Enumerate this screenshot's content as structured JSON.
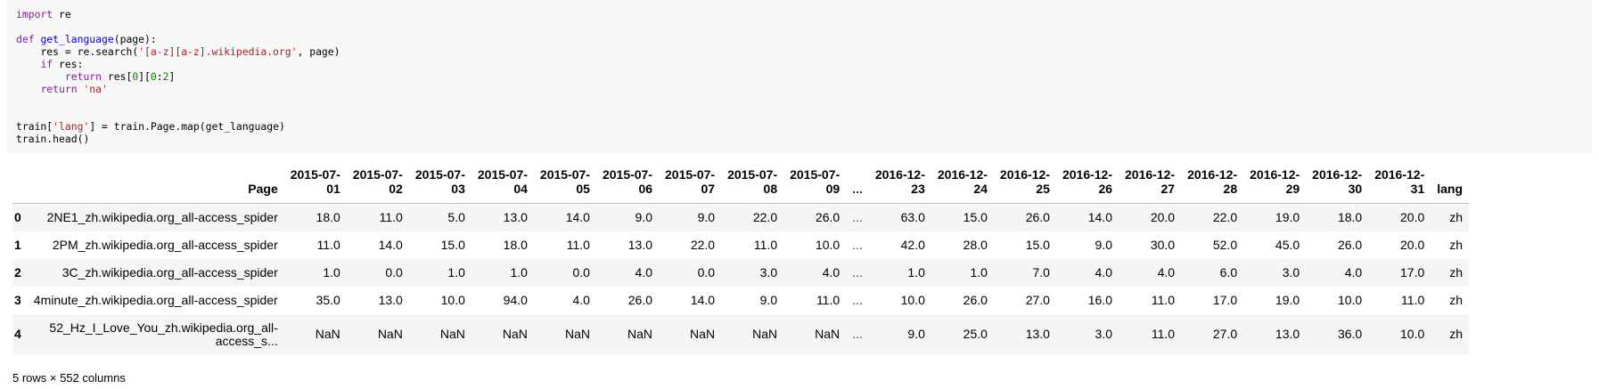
{
  "code_cell": {
    "lines": [
      "import re",
      "",
      "def get_language(page):",
      "    res = re.search('[a-z][a-z].wikipedia.org', page)",
      "    if res:",
      "        return res[0][0:2]",
      "    return 'na'",
      "",
      "",
      "train['lang'] = train.Page.map(get_language)",
      "train.head()"
    ]
  },
  "table": {
    "index_header": "",
    "page_header": "Page",
    "date_headers_left": [
      [
        "2015-07-",
        "01"
      ],
      [
        "2015-07-",
        "02"
      ],
      [
        "2015-07-",
        "03"
      ],
      [
        "2015-07-",
        "04"
      ],
      [
        "2015-07-",
        "05"
      ],
      [
        "2015-07-",
        "06"
      ],
      [
        "2015-07-",
        "07"
      ],
      [
        "2015-07-",
        "08"
      ],
      [
        "2015-07-",
        "09"
      ]
    ],
    "ellipsis": "...",
    "date_headers_right": [
      [
        "2016-12-",
        "23"
      ],
      [
        "2016-12-",
        "24"
      ],
      [
        "2016-12-",
        "25"
      ],
      [
        "2016-12-",
        "26"
      ],
      [
        "2016-12-",
        "27"
      ],
      [
        "2016-12-",
        "28"
      ],
      [
        "2016-12-",
        "29"
      ],
      [
        "2016-12-",
        "30"
      ],
      [
        "2016-12-",
        "31"
      ]
    ],
    "lang_header": "lang",
    "rows": [
      {
        "index": "0",
        "page_lines": [
          "2NE1_zh.wikipedia.org_all-access_spider"
        ],
        "left": [
          "18.0",
          "11.0",
          "5.0",
          "13.0",
          "14.0",
          "9.0",
          "9.0",
          "22.0",
          "26.0"
        ],
        "right": [
          "63.0",
          "15.0",
          "26.0",
          "14.0",
          "20.0",
          "22.0",
          "19.0",
          "18.0",
          "20.0"
        ],
        "lang": "zh"
      },
      {
        "index": "1",
        "page_lines": [
          "2PM_zh.wikipedia.org_all-access_spider"
        ],
        "left": [
          "11.0",
          "14.0",
          "15.0",
          "18.0",
          "11.0",
          "13.0",
          "22.0",
          "11.0",
          "10.0"
        ],
        "right": [
          "42.0",
          "28.0",
          "15.0",
          "9.0",
          "30.0",
          "52.0",
          "45.0",
          "26.0",
          "20.0"
        ],
        "lang": "zh"
      },
      {
        "index": "2",
        "page_lines": [
          "3C_zh.wikipedia.org_all-access_spider"
        ],
        "left": [
          "1.0",
          "0.0",
          "1.0",
          "1.0",
          "0.0",
          "4.0",
          "0.0",
          "3.0",
          "4.0"
        ],
        "right": [
          "1.0",
          "1.0",
          "7.0",
          "4.0",
          "4.0",
          "6.0",
          "3.0",
          "4.0",
          "17.0"
        ],
        "lang": "zh"
      },
      {
        "index": "3",
        "page_lines": [
          "4minute_zh.wikipedia.org_all-access_spider"
        ],
        "left": [
          "35.0",
          "13.0",
          "10.0",
          "94.0",
          "4.0",
          "26.0",
          "14.0",
          "9.0",
          "11.0"
        ],
        "right": [
          "10.0",
          "26.0",
          "27.0",
          "16.0",
          "11.0",
          "17.0",
          "19.0",
          "10.0",
          "11.0"
        ],
        "lang": "zh"
      },
      {
        "index": "4",
        "page_lines": [
          "52_Hz_I_Love_You_zh.wikipedia.org_all-",
          "access_s..."
        ],
        "left": [
          "NaN",
          "NaN",
          "NaN",
          "NaN",
          "NaN",
          "NaN",
          "NaN",
          "NaN",
          "NaN"
        ],
        "right": [
          "9.0",
          "25.0",
          "13.0",
          "3.0",
          "11.0",
          "27.0",
          "13.0",
          "36.0",
          "10.0"
        ],
        "lang": "zh"
      }
    ]
  },
  "footer": "5 rows × 552 columns",
  "colors": {
    "code_background": "#f7f7f7",
    "keyword": "#8b1ca3",
    "function": "#0000ee",
    "string": "#ad2121",
    "number": "#008000",
    "row_stripe": "#f5f5f5"
  }
}
